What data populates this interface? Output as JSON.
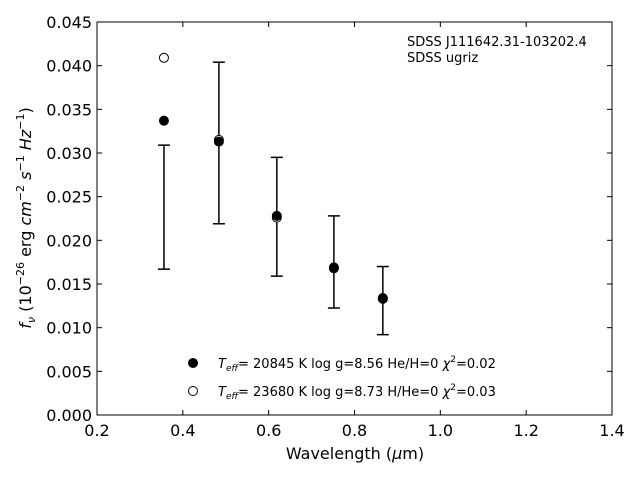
{
  "chart_data": {
    "type": "scatter",
    "xlabel": {
      "text": "Wavelength (",
      "mu": "μ",
      "unit": "m)"
    },
    "ylabel": {
      "f": "f",
      "nu": "ν",
      "a": " (10",
      "e1": "−26",
      "b": " erg ",
      "cm": "cm",
      "e2": "−2",
      "c": " ",
      "s": "s",
      "e3": "−1",
      "d": " ",
      "hz": "Hz",
      "e4": "−1",
      "e": ")"
    },
    "xlim": [
      0.2,
      1.4
    ],
    "ylim": [
      0,
      0.045
    ],
    "xticks": [
      "0.2",
      "0.4",
      "0.6",
      "0.8",
      "1.0",
      "1.2",
      "1.4"
    ],
    "yticks": [
      "0.000",
      "0.005",
      "0.010",
      "0.015",
      "0.020",
      "0.025",
      "0.030",
      "0.035",
      "0.040",
      "0.045"
    ],
    "annotation": [
      "SDSS J111642.31-103202.4",
      "SDSS ugriz"
    ],
    "observed": {
      "x": [
        0.356,
        0.484,
        0.619,
        0.752,
        0.866
      ],
      "low": [
        0.0167,
        0.0219,
        0.0159,
        0.01225,
        0.0092
      ],
      "high": [
        0.0309,
        0.0404,
        0.0295,
        0.0228,
        0.017
      ]
    },
    "series": [
      {
        "name": "He/H=0 model",
        "marker": "filled",
        "x": [
          0.356,
          0.484,
          0.619,
          0.752,
          0.866
        ],
        "y": [
          0.0337,
          0.0313,
          0.0228,
          0.0169,
          0.0134
        ],
        "legend": {
          "t": "T",
          "sub": "eff",
          "mid": "= 20845 K  log g=8.56  He/H=0  ",
          "chi": "χ",
          "sup": "2",
          "end": "=0.02"
        }
      },
      {
        "name": "H/He=0 model",
        "marker": "open",
        "x": [
          0.356,
          0.484,
          0.619,
          0.752,
          0.866
        ],
        "y": [
          0.0409,
          0.0315,
          0.0226,
          0.0168,
          0.0133
        ],
        "legend": {
          "t": "T",
          "sub": "eff",
          "mid": "= 23680 K  log g=8.73  H/He=0  ",
          "chi": "χ",
          "sup": "2",
          "end": "=0.03"
        }
      }
    ],
    "legend_position": "bottom-center"
  }
}
